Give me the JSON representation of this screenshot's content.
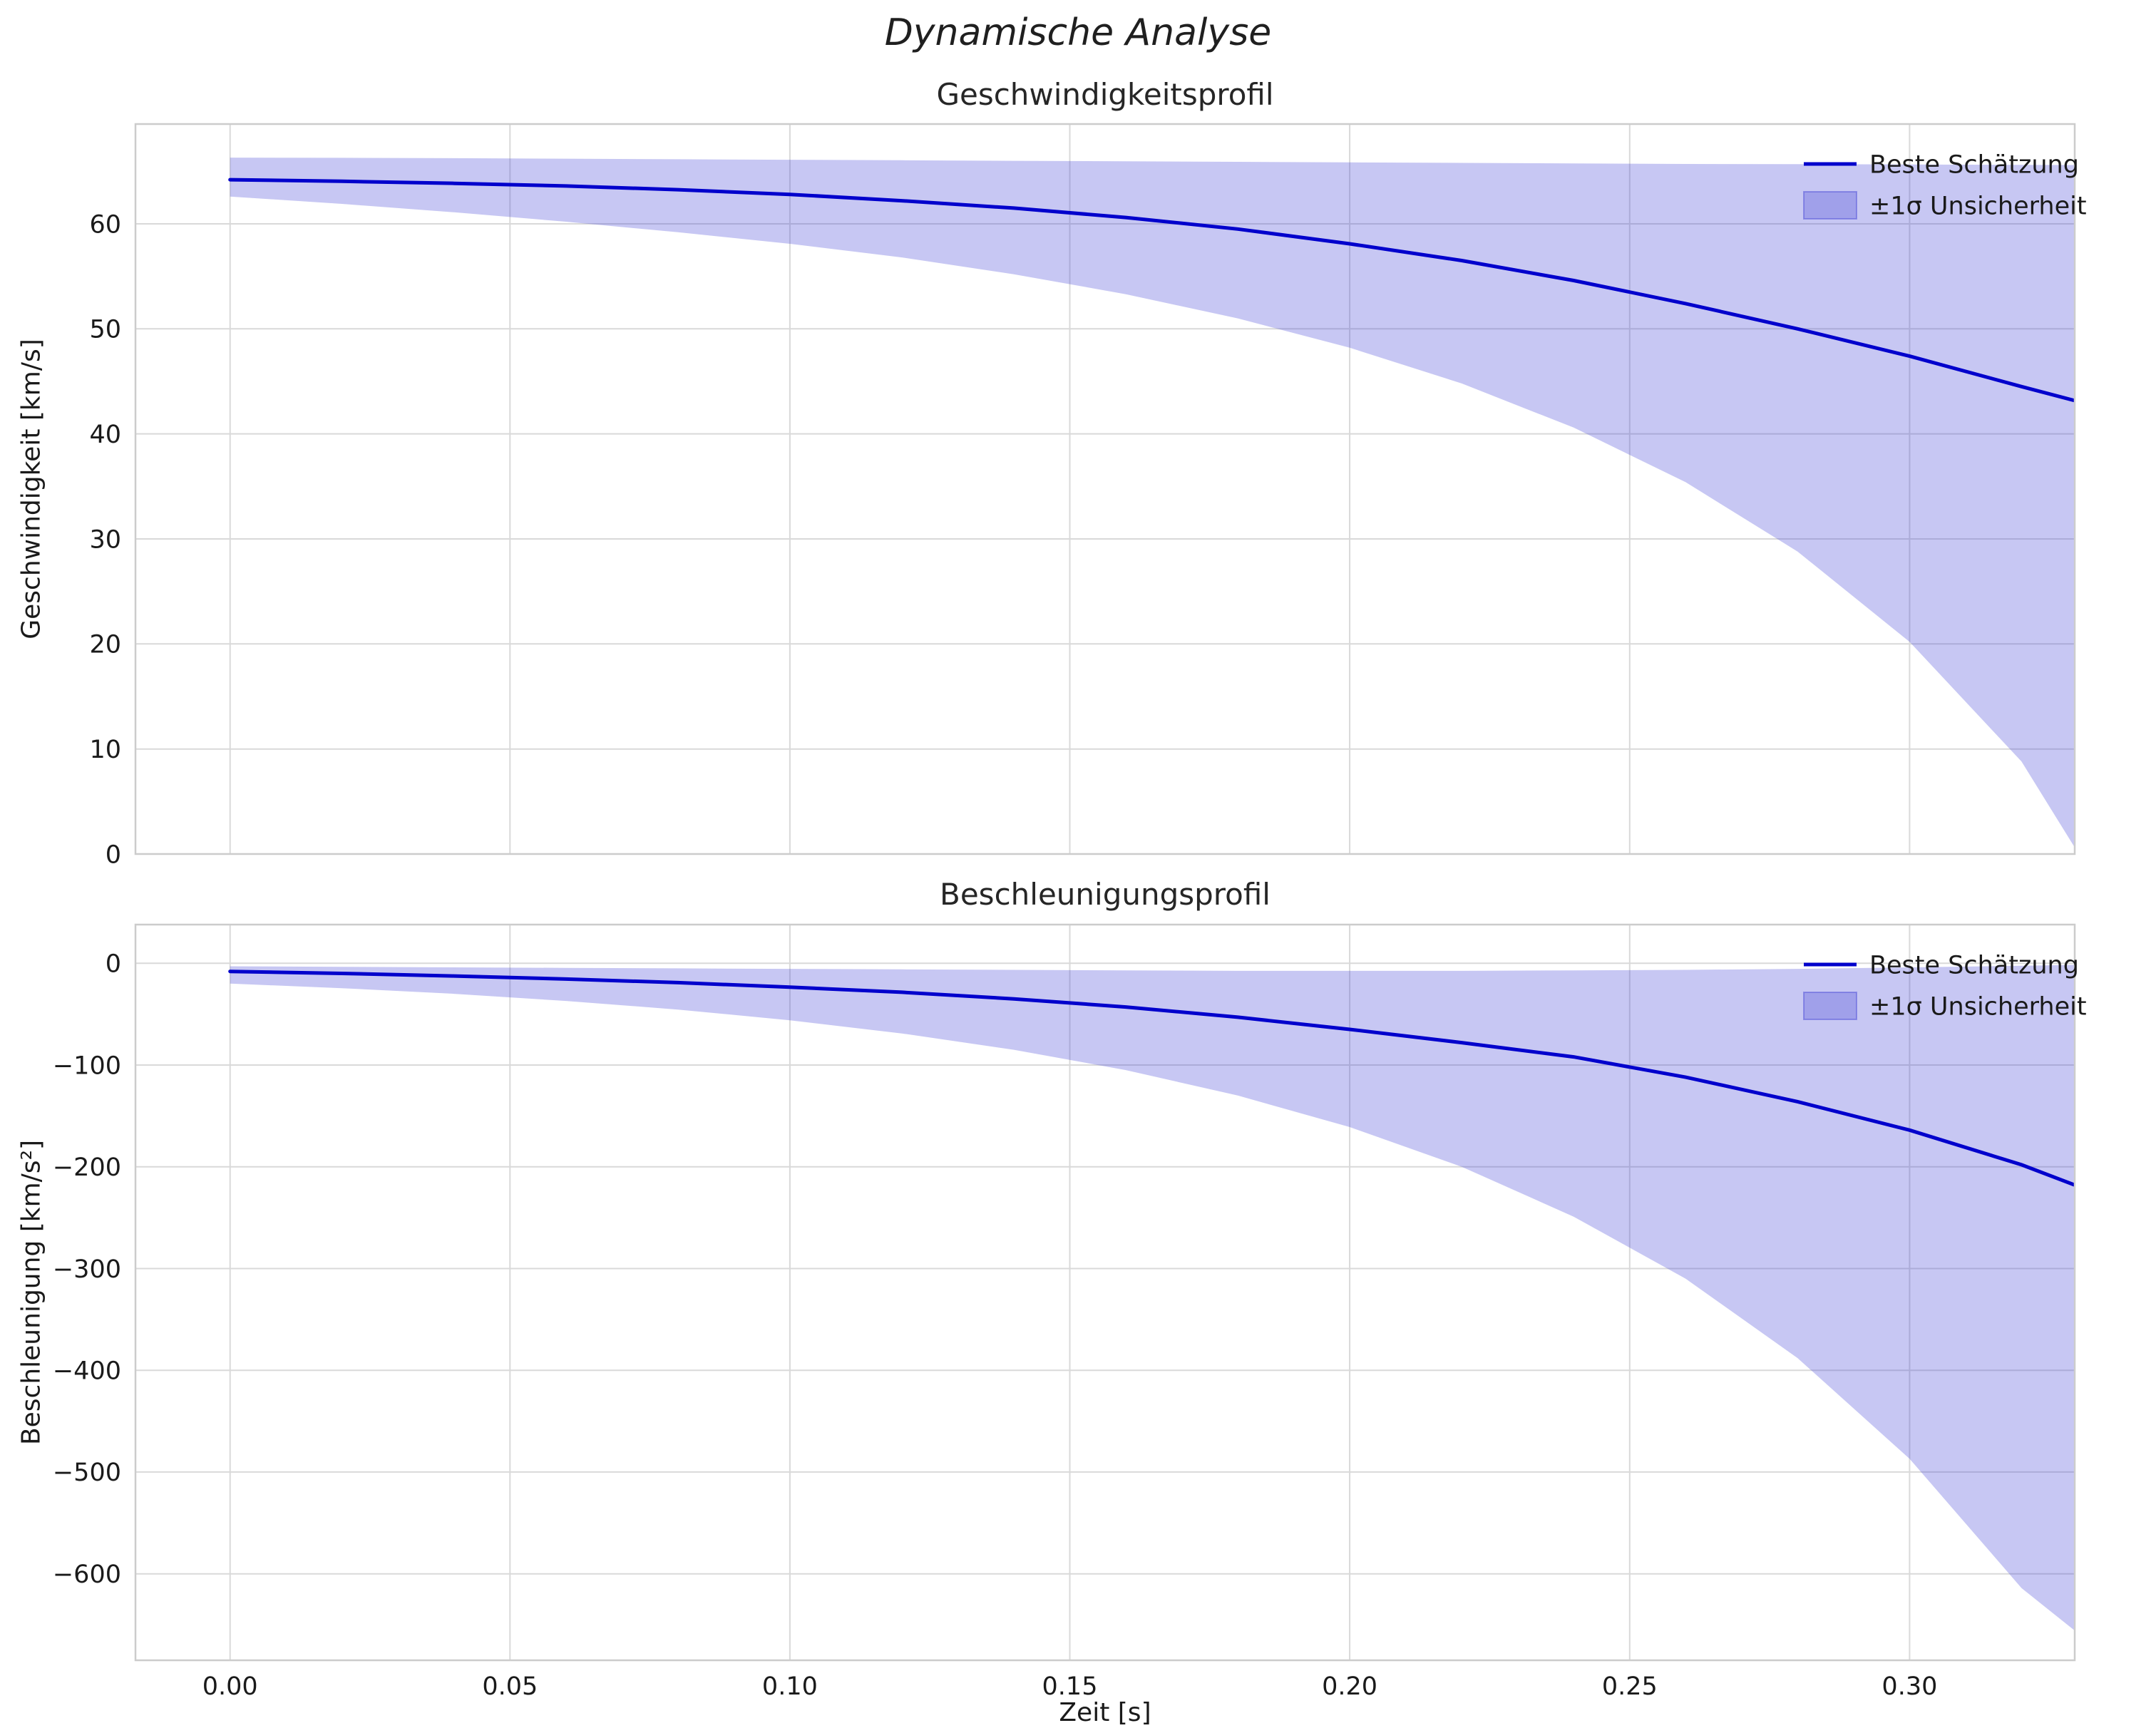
{
  "figure": {
    "title": "Dynamische Analyse"
  },
  "colors": {
    "line": "#0000cc",
    "band_fill": "rgba(70,70,215,0.30)",
    "band_edge": "rgba(70,70,215,0.45)",
    "grid": "#d9d9d9",
    "spine": "#cccccc",
    "text": "#1a1a1a"
  },
  "chart_data": [
    {
      "type": "line",
      "title": "Geschwindigkeitsprofil",
      "ylabel": "Geschwindigkeit [km/s]",
      "xlabel": "",
      "grid": true,
      "legend_position": "upper right",
      "legend": [
        "Beste Schätzung",
        "±1σ Unsicherheit"
      ],
      "xlim": [
        -0.0169,
        0.3295
      ],
      "ylim": [
        0,
        69.5
      ],
      "xticks": [
        0.0,
        0.05,
        0.1,
        0.15,
        0.2,
        0.25,
        0.3
      ],
      "xtick_labels": [
        "0.00",
        "0.05",
        "0.10",
        "0.15",
        "0.20",
        "0.25",
        "0.30"
      ],
      "show_xtick_labels": false,
      "yticks": [
        0,
        10,
        20,
        30,
        40,
        50,
        60
      ],
      "ytick_labels": [
        "0",
        "10",
        "20",
        "30",
        "40",
        "50",
        "60"
      ],
      "x": [
        0.0,
        0.02,
        0.04,
        0.06,
        0.08,
        0.1,
        0.12,
        0.14,
        0.16,
        0.18,
        0.2,
        0.22,
        0.24,
        0.26,
        0.28,
        0.3,
        0.32,
        0.33
      ],
      "series": [
        {
          "name": "Beste Schätzung",
          "values": [
            64.2,
            64.05,
            63.85,
            63.6,
            63.25,
            62.8,
            62.2,
            61.5,
            60.6,
            59.5,
            58.1,
            56.5,
            54.6,
            52.4,
            50.0,
            47.4,
            44.5,
            43.1
          ]
        }
      ],
      "band": {
        "name": "±1σ Unsicherheit",
        "upper": [
          66.3,
          66.28,
          66.25,
          66.2,
          66.15,
          66.1,
          66.05,
          66.0,
          65.95,
          65.9,
          65.85,
          65.8,
          65.75,
          65.7,
          65.68,
          65.65,
          65.62,
          65.6
        ],
        "lower": [
          62.6,
          61.9,
          61.1,
          60.2,
          59.2,
          58.1,
          56.8,
          55.2,
          53.3,
          51.0,
          48.2,
          44.8,
          40.6,
          35.4,
          28.8,
          20.2,
          8.8,
          0.2
        ]
      }
    },
    {
      "type": "line",
      "title": "Beschleunigungsprofil",
      "ylabel": "Beschleunigung [km/s²]",
      "xlabel": "Zeit [s]",
      "grid": true,
      "legend_position": "upper right",
      "legend": [
        "Beste Schätzung",
        "±1σ Unsicherheit"
      ],
      "xlim": [
        -0.0169,
        0.3295
      ],
      "ylim": [
        -685,
        38
      ],
      "xticks": [
        0.0,
        0.05,
        0.1,
        0.15,
        0.2,
        0.25,
        0.3
      ],
      "xtick_labels": [
        "0.00",
        "0.05",
        "0.10",
        "0.15",
        "0.20",
        "0.25",
        "0.30"
      ],
      "show_xtick_labels": true,
      "yticks": [
        0,
        -100,
        -200,
        -300,
        -400,
        -500,
        -600
      ],
      "ytick_labels": [
        "0",
        "−100",
        "−200",
        "−300",
        "−400",
        "−500",
        "−600"
      ],
      "x": [
        0.0,
        0.02,
        0.04,
        0.06,
        0.08,
        0.1,
        0.12,
        0.14,
        0.16,
        0.18,
        0.2,
        0.22,
        0.24,
        0.26,
        0.28,
        0.3,
        0.32,
        0.33
      ],
      "series": [
        {
          "name": "Beste Schätzung",
          "values": [
            -8,
            -10,
            -12.5,
            -15.5,
            -19,
            -23.5,
            -28.5,
            -35,
            -43,
            -53,
            -65,
            -78,
            -92,
            -112,
            -136,
            -164,
            -198,
            -219
          ]
        }
      ],
      "band": {
        "name": "±1σ Unsicherheit",
        "upper": [
          -3,
          -3.5,
          -4,
          -4.5,
          -5,
          -5.5,
          -6,
          -6.5,
          -7,
          -7.5,
          -7.5,
          -7.5,
          -7,
          -6.5,
          -5.5,
          -4,
          -2.5,
          -1.5
        ],
        "lower": [
          -20,
          -24.5,
          -30,
          -37,
          -45.5,
          -56,
          -69,
          -85,
          -105,
          -130,
          -161,
          -200,
          -249,
          -310,
          -388,
          -487,
          -614,
          -658
        ]
      }
    }
  ]
}
